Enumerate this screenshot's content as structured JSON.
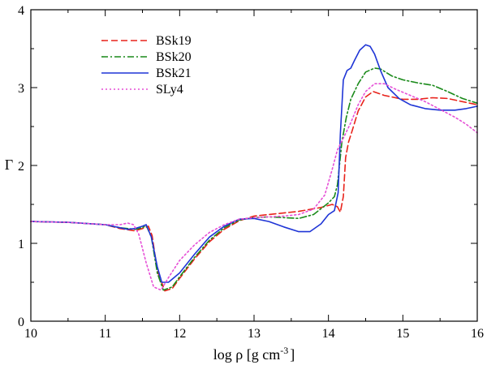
{
  "chart_data": {
    "type": "line",
    "title": "",
    "xlabel": "log ρ  [g cm",
    "xlabel_exp": "-3",
    "xlabel_close": "]",
    "ylabel": "Γ",
    "xlim": [
      10,
      16
    ],
    "ylim": [
      0,
      4
    ],
    "xticks": [
      10,
      11,
      12,
      13,
      14,
      15,
      16
    ],
    "yticks": [
      0,
      1,
      2,
      3,
      4
    ],
    "grid": false,
    "legend_position": "top-left",
    "series": [
      {
        "name": "BSk19",
        "color": "#e8231b",
        "dash": "dashed",
        "points": [
          [
            10,
            1.28
          ],
          [
            10.5,
            1.27
          ],
          [
            11,
            1.24
          ],
          [
            11.2,
            1.19
          ],
          [
            11.4,
            1.16
          ],
          [
            11.5,
            1.19
          ],
          [
            11.58,
            1.22
          ],
          [
            11.63,
            1.1
          ],
          [
            11.7,
            0.65
          ],
          [
            11.8,
            0.39
          ],
          [
            11.9,
            0.42
          ],
          [
            12,
            0.55
          ],
          [
            12.2,
            0.8
          ],
          [
            12.4,
            1.02
          ],
          [
            12.6,
            1.18
          ],
          [
            12.8,
            1.29
          ],
          [
            13,
            1.35
          ],
          [
            13.3,
            1.38
          ],
          [
            13.6,
            1.41
          ],
          [
            13.9,
            1.46
          ],
          [
            14.05,
            1.5
          ],
          [
            14.12,
            1.47
          ],
          [
            14.16,
            1.4
          ],
          [
            14.2,
            1.6
          ],
          [
            14.23,
            2.1
          ],
          [
            14.27,
            2.3
          ],
          [
            14.32,
            2.45
          ],
          [
            14.4,
            2.7
          ],
          [
            14.5,
            2.88
          ],
          [
            14.6,
            2.95
          ],
          [
            14.75,
            2.9
          ],
          [
            15,
            2.85
          ],
          [
            15.2,
            2.85
          ],
          [
            15.4,
            2.87
          ],
          [
            15.6,
            2.86
          ],
          [
            15.8,
            2.82
          ],
          [
            16,
            2.78
          ]
        ]
      },
      {
        "name": "BSk20",
        "color": "#1a8a1a",
        "dash": "dashdot",
        "points": [
          [
            10,
            1.28
          ],
          [
            10.5,
            1.27
          ],
          [
            11,
            1.24
          ],
          [
            11.2,
            1.2
          ],
          [
            11.4,
            1.18
          ],
          [
            11.5,
            1.2
          ],
          [
            11.55,
            1.23
          ],
          [
            11.62,
            1.08
          ],
          [
            11.7,
            0.62
          ],
          [
            11.78,
            0.4
          ],
          [
            11.9,
            0.44
          ],
          [
            12,
            0.57
          ],
          [
            12.2,
            0.82
          ],
          [
            12.4,
            1.04
          ],
          [
            12.6,
            1.2
          ],
          [
            12.8,
            1.3
          ],
          [
            13,
            1.33
          ],
          [
            13.2,
            1.34
          ],
          [
            13.4,
            1.33
          ],
          [
            13.6,
            1.32
          ],
          [
            13.8,
            1.37
          ],
          [
            14,
            1.52
          ],
          [
            14.08,
            1.6
          ],
          [
            14.12,
            1.75
          ],
          [
            14.18,
            2.3
          ],
          [
            14.24,
            2.62
          ],
          [
            14.3,
            2.85
          ],
          [
            14.4,
            3.05
          ],
          [
            14.5,
            3.2
          ],
          [
            14.62,
            3.25
          ],
          [
            14.7,
            3.24
          ],
          [
            14.85,
            3.15
          ],
          [
            15,
            3.1
          ],
          [
            15.2,
            3.06
          ],
          [
            15.4,
            3.03
          ],
          [
            15.6,
            2.95
          ],
          [
            15.8,
            2.86
          ],
          [
            16,
            2.8
          ]
        ]
      },
      {
        "name": "BSk21",
        "color": "#1f35d6",
        "dash": "solid",
        "points": [
          [
            10,
            1.28
          ],
          [
            10.5,
            1.27
          ],
          [
            11,
            1.24
          ],
          [
            11.2,
            1.2
          ],
          [
            11.3,
            1.18
          ],
          [
            11.4,
            1.19
          ],
          [
            11.5,
            1.22
          ],
          [
            11.55,
            1.24
          ],
          [
            11.62,
            1.08
          ],
          [
            11.7,
            0.7
          ],
          [
            11.76,
            0.5
          ],
          [
            11.85,
            0.5
          ],
          [
            12,
            0.62
          ],
          [
            12.2,
            0.86
          ],
          [
            12.4,
            1.08
          ],
          [
            12.6,
            1.22
          ],
          [
            12.8,
            1.31
          ],
          [
            13,
            1.32
          ],
          [
            13.2,
            1.28
          ],
          [
            13.4,
            1.21
          ],
          [
            13.6,
            1.15
          ],
          [
            13.75,
            1.15
          ],
          [
            13.9,
            1.25
          ],
          [
            14,
            1.37
          ],
          [
            14.08,
            1.42
          ],
          [
            14.13,
            1.65
          ],
          [
            14.16,
            2.4
          ],
          [
            14.2,
            3.1
          ],
          [
            14.25,
            3.22
          ],
          [
            14.3,
            3.25
          ],
          [
            14.35,
            3.35
          ],
          [
            14.42,
            3.48
          ],
          [
            14.5,
            3.55
          ],
          [
            14.56,
            3.53
          ],
          [
            14.62,
            3.43
          ],
          [
            14.7,
            3.22
          ],
          [
            14.8,
            3.0
          ],
          [
            14.95,
            2.86
          ],
          [
            15.1,
            2.78
          ],
          [
            15.3,
            2.73
          ],
          [
            15.5,
            2.71
          ],
          [
            15.7,
            2.71
          ],
          [
            15.85,
            2.73
          ],
          [
            16,
            2.76
          ]
        ]
      },
      {
        "name": "SLy4",
        "color": "#e64fd6",
        "dash": "dotted",
        "points": [
          [
            10,
            1.28
          ],
          [
            10.5,
            1.27
          ],
          [
            11,
            1.24
          ],
          [
            11.2,
            1.24
          ],
          [
            11.3,
            1.26
          ],
          [
            11.38,
            1.24
          ],
          [
            11.45,
            1.12
          ],
          [
            11.55,
            0.75
          ],
          [
            11.65,
            0.44
          ],
          [
            11.75,
            0.4
          ],
          [
            11.85,
            0.56
          ],
          [
            12,
            0.78
          ],
          [
            12.2,
            0.98
          ],
          [
            12.4,
            1.14
          ],
          [
            12.6,
            1.24
          ],
          [
            12.8,
            1.31
          ],
          [
            13,
            1.33
          ],
          [
            13.2,
            1.34
          ],
          [
            13.4,
            1.35
          ],
          [
            13.6,
            1.37
          ],
          [
            13.8,
            1.44
          ],
          [
            13.95,
            1.62
          ],
          [
            14.05,
            1.95
          ],
          [
            14.12,
            2.2
          ],
          [
            14.2,
            2.35
          ],
          [
            14.3,
            2.55
          ],
          [
            14.4,
            2.78
          ],
          [
            14.5,
            2.95
          ],
          [
            14.62,
            3.05
          ],
          [
            14.75,
            3.05
          ],
          [
            14.9,
            2.98
          ],
          [
            15.1,
            2.9
          ],
          [
            15.3,
            2.82
          ],
          [
            15.5,
            2.72
          ],
          [
            15.7,
            2.62
          ],
          [
            15.85,
            2.53
          ],
          [
            16,
            2.42
          ]
        ]
      }
    ]
  }
}
